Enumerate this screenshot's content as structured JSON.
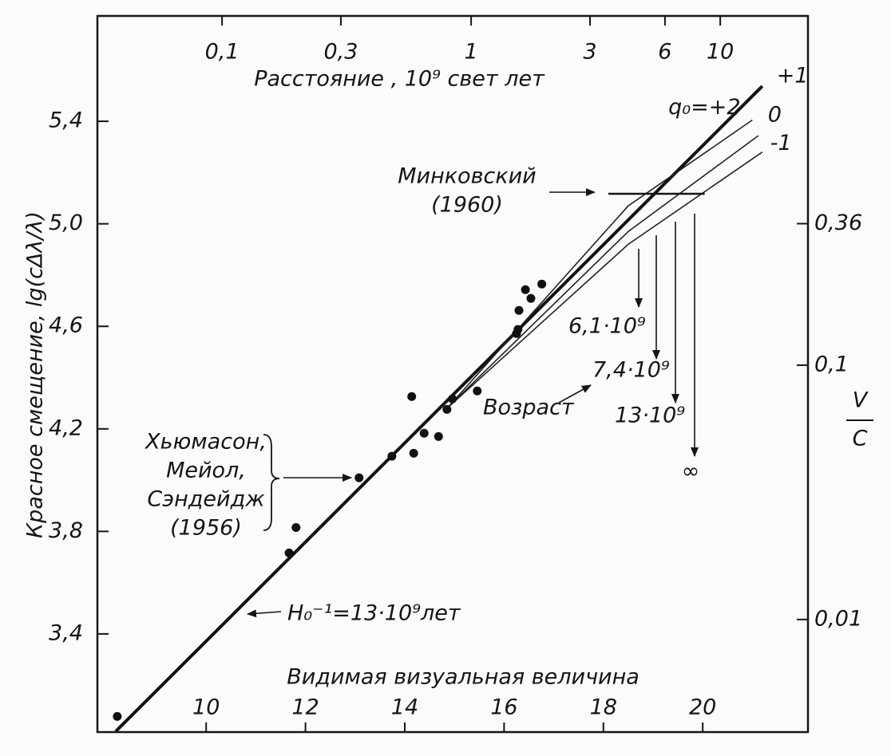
{
  "chart_data": {
    "type": "scatter",
    "x_label": "Видимая визуальная величина",
    "y_label": "Красное смещение, lg(cΔλ/λ)",
    "x2_label": "Расстояние , 10⁹ свет лет",
    "y2_label": [
      "V",
      "C"
    ],
    "xlim": [
      7.81,
      22.12
    ],
    "xticks": [
      10,
      12,
      14,
      16,
      18,
      20
    ],
    "ylim": [
      3.017,
      5.811
    ],
    "yticks": [
      {
        "value": 3.4,
        "label": "3,4"
      },
      {
        "value": 3.8,
        "label": "3,8"
      },
      {
        "value": 4.2,
        "label": "4,2"
      },
      {
        "value": 4.6,
        "label": "4,6"
      },
      {
        "value": 5.0,
        "label": "5,0"
      },
      {
        "value": 5.4,
        "label": "5,4"
      }
    ],
    "x2lim": [
      0.0316,
      22.5
    ],
    "x2_log": true,
    "x2ticks": [
      {
        "value": 0.1,
        "label": "0,1"
      },
      {
        "value": 0.3,
        "label": "0,3"
      },
      1,
      3,
      6,
      10
    ],
    "y2lim": [
      0.00361,
      2.36
    ],
    "y2_log": true,
    "y2ticks": [
      {
        "value": 0.01,
        "label": "0,01"
      },
      {
        "value": 0.1,
        "label": "0,1"
      },
      {
        "value": 0.36,
        "label": "0,36"
      }
    ],
    "points": {
      "color": "#111111",
      "x": [
        8.21,
        11.67,
        11.81,
        13.08,
        13.74,
        14.14,
        14.18,
        14.39,
        14.68,
        14.85,
        14.96,
        15.46,
        16.25,
        16.28,
        16.3,
        16.43,
        16.54,
        16.76
      ],
      "values": [
        3.078,
        3.716,
        3.815,
        4.009,
        4.093,
        4.326,
        4.105,
        4.183,
        4.17,
        4.276,
        4.317,
        4.348,
        4.572,
        4.588,
        4.662,
        4.743,
        4.709,
        4.765
      ]
    },
    "series": [
      {
        "name": "+1",
        "color": "#111111",
        "width": 4,
        "x": [
          8.18,
          21.2
        ],
        "values": [
          3.02,
          5.537
        ]
      },
      {
        "name": "q₀=+2",
        "color": "#222222",
        "width": 1.6,
        "x": [
          14.85,
          18.5,
          21.0
        ],
        "values": [
          4.28,
          5.07,
          5.405
        ]
      },
      {
        "name": "0",
        "color": "#222222",
        "width": 1.6,
        "x": [
          14.85,
          18.5,
          21.12
        ],
        "values": [
          4.28,
          4.97,
          5.344
        ]
      },
      {
        "name": "-1",
        "color": "#222222",
        "width": 1.6,
        "x": [
          14.85,
          18.5,
          21.2
        ],
        "values": [
          4.28,
          4.92,
          5.28
        ]
      }
    ],
    "reference_line": {
      "x": [
        18.1,
        20.04
      ],
      "values": [
        5.117,
        5.117
      ]
    },
    "annotations": [
      [
        "Минковский",
        "(1960)"
      ],
      [
        "Хьюмасон,",
        "Мейол,",
        "Сэндейдж",
        "(1956)"
      ],
      [
        "H₀⁻¹=13·10⁹лет"
      ],
      [
        "Возраст"
      ],
      [
        "6,1·10⁹"
      ],
      [
        "7,4·10⁹"
      ],
      [
        "13·10⁹"
      ],
      [
        "∞"
      ]
    ]
  }
}
